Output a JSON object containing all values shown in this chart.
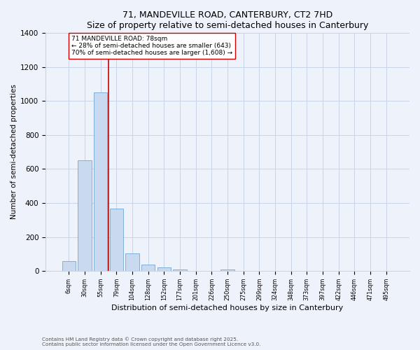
{
  "title1": "71, MANDEVILLE ROAD, CANTERBURY, CT2 7HD",
  "title2": "Size of property relative to semi-detached houses in Canterbury",
  "xlabel": "Distribution of semi-detached houses by size in Canterbury",
  "ylabel": "Number of semi-detached properties",
  "categories": [
    "6sqm",
    "30sqm",
    "55sqm",
    "79sqm",
    "104sqm",
    "128sqm",
    "152sqm",
    "177sqm",
    "201sqm",
    "226sqm",
    "250sqm",
    "275sqm",
    "299sqm",
    "324sqm",
    "348sqm",
    "373sqm",
    "397sqm",
    "422sqm",
    "446sqm",
    "471sqm",
    "495sqm"
  ],
  "values": [
    60,
    650,
    1050,
    365,
    105,
    38,
    20,
    7,
    0,
    0,
    10,
    0,
    0,
    0,
    0,
    0,
    0,
    0,
    0,
    0,
    0
  ],
  "bar_color": "#c9d9f0",
  "bar_edge_color": "#6fa8d6",
  "vline_color": "#cc0000",
  "vline_x": 2.5,
  "annotation_text": "71 MANDEVILLE ROAD: 78sqm\n← 28% of semi-detached houses are smaller (643)\n70% of semi-detached houses are larger (1,608) →",
  "annotation_box_color": "white",
  "annotation_box_edge_color": "#cc0000",
  "ylim": [
    0,
    1400
  ],
  "yticks": [
    0,
    200,
    400,
    600,
    800,
    1000,
    1200,
    1400
  ],
  "footer1": "Contains HM Land Registry data © Crown copyright and database right 2025.",
  "footer2": "Contains public sector information licensed under the Open Government Licence v3.0.",
  "bg_color": "#eef2fa",
  "grid_color": "#c8d4e8"
}
